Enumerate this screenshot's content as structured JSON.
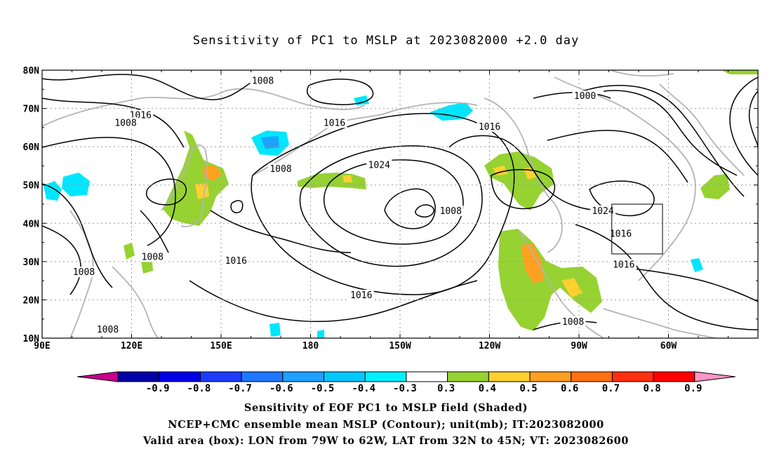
{
  "title": "Sensitivity of PC1 to MSLP at 2023082000 +2.0 day",
  "map": {
    "lat_labels": [
      "80N",
      "70N",
      "60N",
      "50N",
      "40N",
      "30N",
      "20N",
      "10N"
    ],
    "lon_labels": [
      "90E",
      "120E",
      "150E",
      "180",
      "150W",
      "120W",
      "90W",
      "60W"
    ],
    "contour_labels": [
      {
        "text": "1008",
        "lon": 164,
        "lat": 77
      },
      {
        "text": "1016",
        "lon": 123,
        "lat": 68
      },
      {
        "text": "1008",
        "lon": 118,
        "lat": 66
      },
      {
        "text": "1008",
        "lon": 170,
        "lat": 54
      },
      {
        "text": "1016",
        "lon": 188,
        "lat": 66
      },
      {
        "text": "1024",
        "lon": 203,
        "lat": 55
      },
      {
        "text": "1016",
        "lon": 240,
        "lat": 65
      },
      {
        "text": "1000",
        "lon": 272,
        "lat": 73
      },
      {
        "text": "1008",
        "lon": 227,
        "lat": 43
      },
      {
        "text": "1024",
        "lon": 278,
        "lat": 43
      },
      {
        "text": "1016",
        "lon": 284,
        "lat": 37
      },
      {
        "text": "1008",
        "lon": 127,
        "lat": 31
      },
      {
        "text": "1016",
        "lon": 155,
        "lat": 30
      },
      {
        "text": "1008",
        "lon": 104,
        "lat": 27
      },
      {
        "text": "1016",
        "lon": 197,
        "lat": 21
      },
      {
        "text": "1016",
        "lon": 285,
        "lat": 29
      },
      {
        "text": "1008",
        "lon": 112,
        "lat": 12
      },
      {
        "text": "1008",
        "lon": 268,
        "lat": 14
      }
    ],
    "valid_box": {
      "lon_min": 281,
      "lon_max": 298,
      "lat_min": 32,
      "lat_max": 45
    }
  },
  "colorbar": {
    "ticks": [
      "-0.9",
      "-0.8",
      "-0.7",
      "-0.6",
      "-0.5",
      "-0.4",
      "-0.3",
      "0.3",
      "0.4",
      "0.5",
      "0.6",
      "0.7",
      "0.8",
      "0.9"
    ],
    "colors": [
      "#0000a8",
      "#0000e6",
      "#1e3cff",
      "#1e78ff",
      "#1ea0ff",
      "#00c8ff",
      "#00f0ff",
      "#ffffff",
      "#96d232",
      "#ffd030",
      "#ffa020",
      "#ff7010",
      "#ff3010",
      "#ff0000"
    ],
    "low_end_color": "#c8008c",
    "high_end_color": "#ff96c8"
  },
  "captions": {
    "line1": "Sensitivity of EOF PC1 to MSLP field (Shaded)",
    "line2": "NCEP+CMC ensemble mean MSLP (Contour); unit(mb); IT:2023082000",
    "line3": "Valid area (box): LON from 79W to 62W, LAT from 32N to 45N; VT: 2023082600"
  }
}
